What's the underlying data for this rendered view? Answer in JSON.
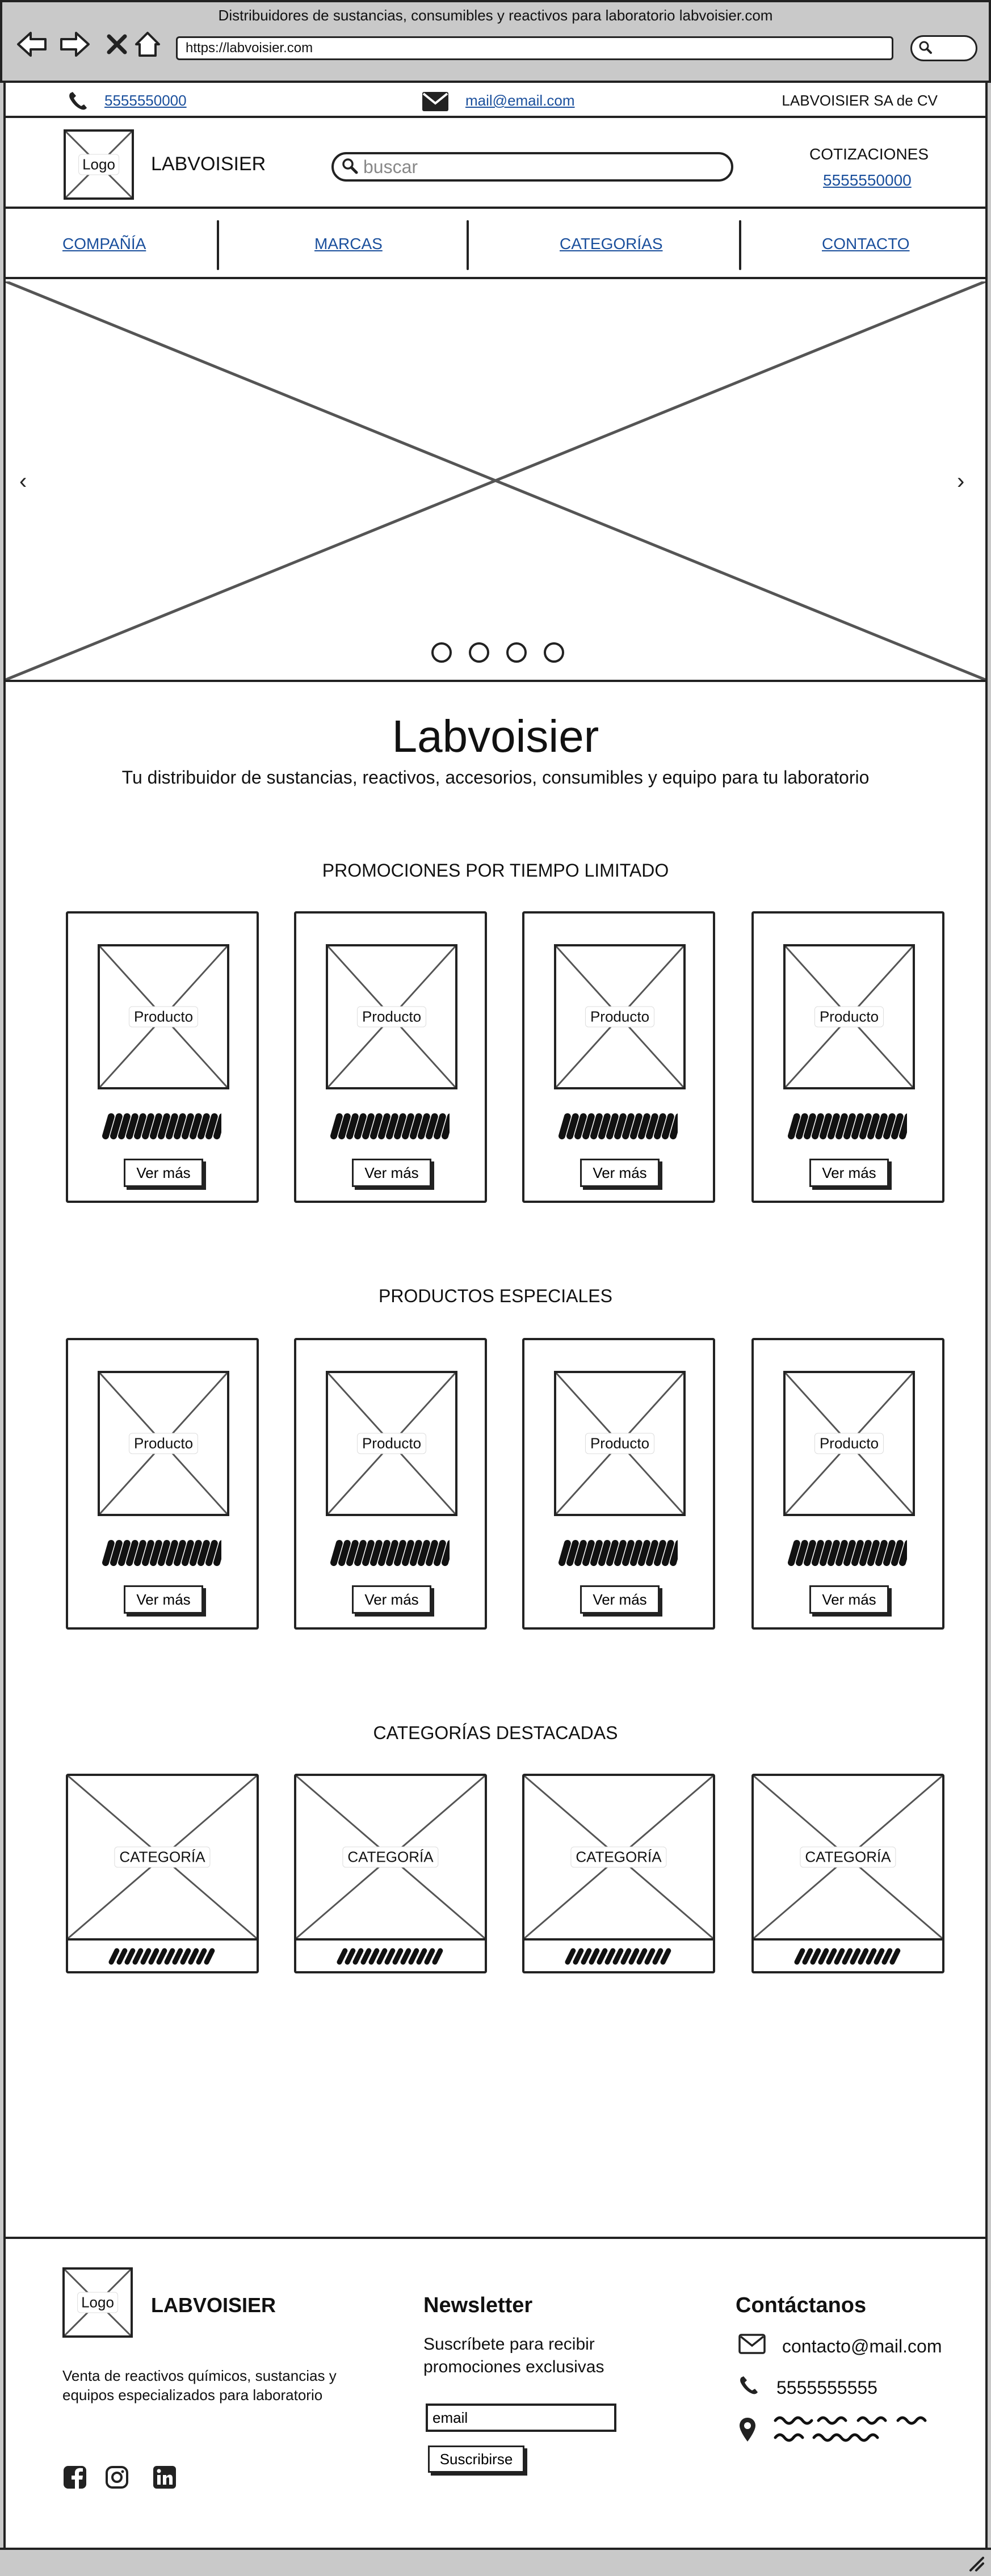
{
  "browser": {
    "title": "Distribuidores de sustancias, consumibles y reactivos para laboratorio labvoisier.com",
    "url": "https://labvoisier.com"
  },
  "topbar": {
    "phone": "5555550000",
    "email": "mail@email.com",
    "company": "LABVOISIER SA de CV"
  },
  "header": {
    "logo_label": "Logo",
    "brand": "LABVOISIER",
    "search_placeholder": "buscar",
    "quote_title": "COTIZACIONES",
    "quote_phone": "5555550000"
  },
  "nav": {
    "items": [
      "COMPAÑÍA",
      "MARCAS",
      "CATEGORÍAS",
      "CONTACTO"
    ]
  },
  "hero": {
    "prev": "‹",
    "next": "›",
    "slide_count": 4
  },
  "intro": {
    "title": "Labvoisier",
    "tagline": "Tu distribuidor de sustancias, reactivos, accesorios, consumibles y equipo para tu laboratorio"
  },
  "promos": {
    "title": "PROMOCIONES POR TIEMPO LIMITADO",
    "products": [
      {
        "label": "Producto",
        "button": "Ver más"
      },
      {
        "label": "Producto",
        "button": "Ver más"
      },
      {
        "label": "Producto",
        "button": "Ver más"
      },
      {
        "label": "Producto",
        "button": "Ver más"
      }
    ]
  },
  "specials": {
    "title": "PRODUCTOS ESPECIALES",
    "products": [
      {
        "label": "Producto",
        "button": "Ver más"
      },
      {
        "label": "Producto",
        "button": "Ver más"
      },
      {
        "label": "Producto",
        "button": "Ver más"
      },
      {
        "label": "Producto",
        "button": "Ver más"
      }
    ]
  },
  "categories": {
    "title": "CATEGORÍAS DESTACADAS",
    "items": [
      {
        "label": "CATEGORÍA"
      },
      {
        "label": "CATEGORÍA"
      },
      {
        "label": "CATEGORÍA"
      },
      {
        "label": "CATEGORÍA"
      }
    ]
  },
  "footer": {
    "logo_label": "Logo",
    "brand": "LABVOISIER",
    "description": "Venta de reactivos químicos, sustancias y equipos especializados para laboratorio",
    "newsletter_title": "Newsletter",
    "newsletter_desc": "Suscríbete para recibir promociones exclusivas",
    "newsletter_input": "email",
    "newsletter_button": "Suscribirse",
    "contact_title": "Contáctanos",
    "contact_email": "contacto@mail.com",
    "contact_phone": "5555555555"
  }
}
